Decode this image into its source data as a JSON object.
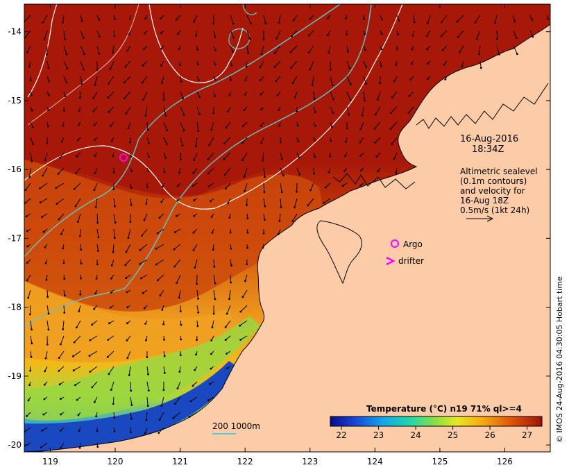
{
  "map": {
    "x_ticks": [
      {
        "label": "119",
        "lon": 119
      },
      {
        "label": "120",
        "lon": 120
      },
      {
        "label": "121",
        "lon": 121
      },
      {
        "label": "122",
        "lon": 122
      },
      {
        "label": "123",
        "lon": 123
      },
      {
        "label": "124",
        "lon": 124
      },
      {
        "label": "125",
        "lon": 125
      },
      {
        "label": "126",
        "lon": 126
      }
    ],
    "y_ticks": [
      {
        "label": "-14",
        "lat": -14
      },
      {
        "label": "-15",
        "lat": -15
      },
      {
        "label": "-16",
        "lat": -16
      },
      {
        "label": "-17",
        "lat": -17
      },
      {
        "label": "-18",
        "lat": -18
      },
      {
        "label": "-19",
        "lat": -19
      },
      {
        "label": "-20",
        "lat": -20
      }
    ],
    "lon_range": [
      118.6,
      126.7
    ],
    "lat_range": [
      -20.1,
      -13.6
    ]
  },
  "annotations": {
    "date": "16-Aug-2016",
    "time": "18:34Z",
    "altimetry_lines": [
      "Altimetric sealevel",
      "(0.1m contours)",
      "and velocity for",
      "16-Aug 18Z",
      "0.5m/s (1kt 24h)"
    ],
    "argo_label": "Argo",
    "drifter_label": "drifter",
    "scale_label": "200  1000m"
  },
  "colorbar": {
    "title": "Temperature (°C) n19 71% ql>=4",
    "ticks": [
      "22",
      "23",
      "24",
      "25",
      "26",
      "27"
    ],
    "range": [
      21.7,
      27.4
    ]
  },
  "credit": "© IMOS 24-Aug-2016 04:30:05 Hobart time",
  "colors": {
    "land": "#fccca8",
    "sst_hot": "#a81808",
    "sst_warm": "#d45a0a",
    "sst_mid": "#f0a020",
    "sst_cool": "#8ed64a",
    "sst_cold": "#1848b8",
    "contour_white": "#ffffff",
    "contour_cyan": "#5fc8c8",
    "argo": "#ff00ff"
  }
}
